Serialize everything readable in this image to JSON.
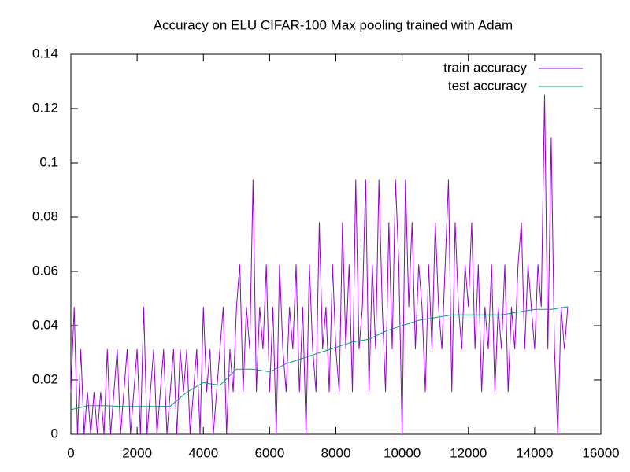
{
  "chart_data": {
    "type": "line",
    "title": "Accuracy on ELU CIFAR-100 Max pooling trained with Adam",
    "legend": "top-right",
    "grid": false,
    "xlim": [
      0,
      16000
    ],
    "xticks": [
      0,
      2000,
      4000,
      6000,
      8000,
      10000,
      12000,
      14000,
      16000
    ],
    "ylim": [
      0,
      0.14
    ],
    "yticks": [
      0,
      0.02,
      0.04,
      0.06,
      0.08,
      0.1,
      0.12,
      0.14
    ],
    "series": [
      {
        "name": "train accuracy",
        "color": "#9400d3",
        "x": [
          0,
          100,
          200,
          300,
          400,
          500,
          600,
          700,
          800,
          900,
          1000,
          1100,
          1200,
          1300,
          1400,
          1500,
          1600,
          1700,
          1800,
          1900,
          2000,
          2100,
          2200,
          2300,
          2400,
          2500,
          2600,
          2700,
          2800,
          2900,
          3000,
          3100,
          3200,
          3300,
          3400,
          3500,
          3600,
          3700,
          3800,
          3900,
          4000,
          4100,
          4200,
          4300,
          4400,
          4500,
          4600,
          4700,
          4800,
          4900,
          5000,
          5100,
          5200,
          5300,
          5400,
          5500,
          5600,
          5700,
          5800,
          5900,
          6000,
          6100,
          6200,
          6300,
          6400,
          6500,
          6600,
          6700,
          6800,
          6900,
          7000,
          7100,
          7200,
          7300,
          7400,
          7500,
          7600,
          7700,
          7800,
          7900,
          8000,
          8100,
          8200,
          8300,
          8400,
          8500,
          8600,
          8700,
          8800,
          8900,
          9000,
          9100,
          9200,
          9300,
          9400,
          9500,
          9600,
          9700,
          9800,
          9900,
          10000,
          10100,
          10200,
          10300,
          10400,
          10500,
          10600,
          10700,
          10800,
          10900,
          11000,
          11100,
          11200,
          11300,
          11400,
          11500,
          11600,
          11700,
          11800,
          11900,
          12000,
          12100,
          12200,
          12300,
          12400,
          12500,
          12600,
          12700,
          12800,
          12900,
          13000,
          13100,
          13200,
          13300,
          13400,
          13500,
          13600,
          13700,
          13800,
          13900,
          14000,
          14100,
          14200,
          14300,
          14400,
          14500,
          14600,
          14700,
          14800,
          14900,
          15000
        ],
        "values": [
          0.0156,
          0.0469,
          0,
          0.0313,
          0,
          0.0156,
          0,
          0.0156,
          0,
          0.0156,
          0,
          0.0313,
          0,
          0.0156,
          0.0313,
          0,
          0.0156,
          0.0313,
          0,
          0.0156,
          0.0313,
          0,
          0.0469,
          0,
          0.0156,
          0.0313,
          0,
          0.0156,
          0.0313,
          0,
          0.0156,
          0.0313,
          0,
          0.0313,
          0.0156,
          0.0313,
          0,
          0.0156,
          0.0313,
          0,
          0.0469,
          0.0156,
          0.0313,
          0,
          0.0156,
          0.0313,
          0.0469,
          0,
          0.0313,
          0.0156,
          0.0469,
          0.0625,
          0.0156,
          0.0469,
          0.0313,
          0.0938,
          0.0156,
          0.0469,
          0.0313,
          0.0625,
          0.0156,
          0.0469,
          0,
          0.0625,
          0.0313,
          0.0156,
          0.0469,
          0.0313,
          0.0625,
          0.0156,
          0.0469,
          0,
          0.0625,
          0.0313,
          0.0156,
          0.0781,
          0.0313,
          0.0469,
          0.0156,
          0.0625,
          0.0313,
          0.0156,
          0.0781,
          0.0313,
          0.0625,
          0.0156,
          0.0938,
          0.0313,
          0.0469,
          0.0938,
          0.0156,
          0.0625,
          0.0313,
          0.0938,
          0.0469,
          0.0156,
          0.0781,
          0.0313,
          0.0938,
          0.0625,
          0,
          0.0938,
          0.0469,
          0.0781,
          0.0313,
          0.0625,
          0.0469,
          0.0156,
          0.0625,
          0.0313,
          0.0781,
          0.0469,
          0.0313,
          0.0625,
          0.0938,
          0.0156,
          0.0781,
          0.0469,
          0.0313,
          0.0625,
          0.0469,
          0.0781,
          0.0313,
          0.0625,
          0.0156,
          0.0469,
          0.0313,
          0.0625,
          0.0156,
          0.0469,
          0.0313,
          0.0625,
          0.0156,
          0.0469,
          0.0313,
          0.0625,
          0.0781,
          0.0313,
          0.0625,
          0.0469,
          0.0313,
          0.0625,
          0.0469,
          0.125,
          0.0313,
          0.1094,
          0.0313,
          0,
          0.0469,
          0.0313,
          0.0469
        ]
      },
      {
        "name": "test accuracy",
        "color": "#009e73",
        "x": [
          0,
          500,
          1000,
          1500,
          2000,
          2500,
          3000,
          3500,
          4000,
          4500,
          5000,
          5500,
          6000,
          6500,
          7000,
          7500,
          8000,
          8500,
          9000,
          9500,
          10000,
          10500,
          11000,
          11500,
          12000,
          12500,
          13000,
          13500,
          14000,
          14500,
          15000
        ],
        "values": [
          0.009,
          0.0105,
          0.0105,
          0.0102,
          0.0102,
          0.0102,
          0.0103,
          0.0155,
          0.019,
          0.018,
          0.024,
          0.024,
          0.023,
          0.026,
          0.028,
          0.03,
          0.032,
          0.034,
          0.035,
          0.038,
          0.04,
          0.042,
          0.043,
          0.044,
          0.044,
          0.044,
          0.044,
          0.045,
          0.046,
          0.046,
          0.047
        ]
      }
    ]
  }
}
